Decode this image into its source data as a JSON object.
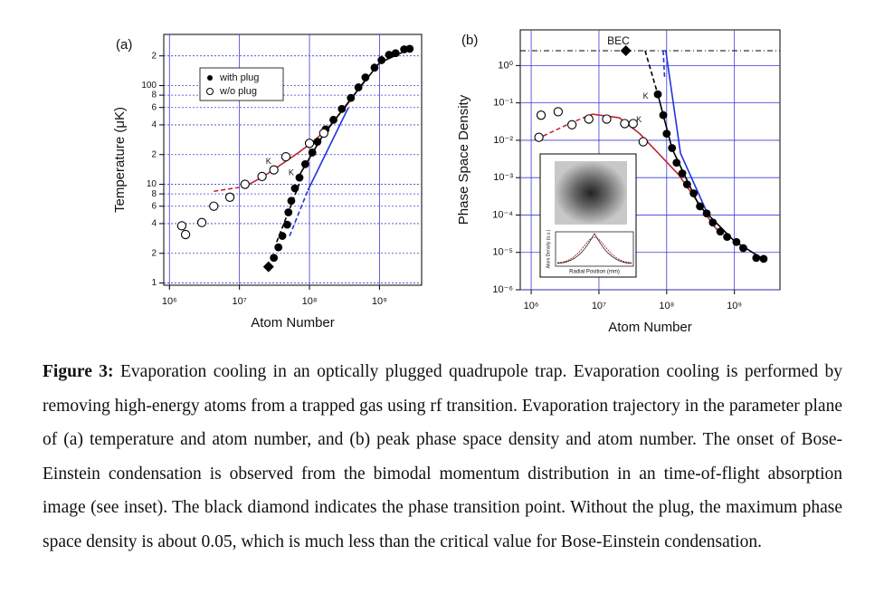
{
  "chart_data": [
    {
      "type": "scatter",
      "panel_label": "(a)",
      "xlabel": "Atom Number",
      "ylabel": "Temperature (μK)",
      "log_x": true,
      "log_y": true,
      "grid": true,
      "grid_color": "#3b3bd6",
      "legend": "upper left",
      "xlim": [
        830000,
        4000000000
      ],
      "ylim": [
        0.95,
        330
      ],
      "xticks": [
        {
          "value": 1000000,
          "label": "10⁶"
        },
        {
          "value": 10000000,
          "label": "10⁷"
        },
        {
          "value": 100000000,
          "label": "10⁸"
        },
        {
          "value": 1000000000,
          "label": "10⁹"
        }
      ],
      "yticks": [
        1,
        2,
        4,
        6,
        8,
        10,
        {
          "value": 20,
          "label": "2"
        },
        {
          "value": 40,
          "label": "4"
        },
        {
          "value": 60,
          "label": "6"
        },
        {
          "value": 80,
          "label": "8"
        },
        100,
        {
          "value": 200,
          "label": "2"
        }
      ],
      "series": [
        {
          "name": "with plug",
          "marker": "filled",
          "color": "#000000",
          "x": [
            31000000,
            36000000,
            41000000,
            48000000,
            50000000,
            55000000,
            62000000,
            72000000,
            87000000,
            110000000,
            130000000,
            170000000,
            220000000,
            290000000,
            390000000,
            500000000,
            630000000,
            850000000,
            1070000000,
            1370000000,
            1700000000,
            2250000000,
            2700000000
          ],
          "values": [
            1.8,
            2.3,
            3.0,
            3.9,
            5.2,
            6.8,
            9.1,
            11.7,
            16,
            21,
            27,
            36,
            45,
            58,
            75,
            96,
            121,
            152,
            181,
            205,
            213,
            233,
            236
          ]
        },
        {
          "name": "w/o plug",
          "marker": "open",
          "color": "#000000",
          "x": [
            1500000,
            1700000,
            2900000,
            4300000,
            7300000,
            12000000,
            21000000,
            31000000,
            46000000,
            100000000,
            160000000
          ],
          "values": [
            3.8,
            3.1,
            4.1,
            6.0,
            7.4,
            10,
            12,
            14,
            19,
            26,
            33
          ]
        },
        {
          "marker": "diamond",
          "color": "#000000",
          "x": [
            26000000
          ],
          "values": [
            1.46
          ]
        },
        {
          "line": "dashed",
          "color": "#c0282d",
          "x": [
            4300000,
            12000000
          ],
          "values": [
            8.5,
            9.5
          ]
        },
        {
          "line": "solid",
          "color": "#c0282d",
          "x": [
            12000000,
            22000000,
            40000000,
            70000000,
            120000000,
            200000000,
            350000000,
            600000000
          ],
          "values": [
            9.5,
            12,
            16,
            21,
            28,
            40,
            65,
            110
          ]
        },
        {
          "line": "dashed",
          "color": "#000000",
          "x": [
            34000000,
            75000000
          ],
          "values": [
            2.6,
            11
          ]
        },
        {
          "line": "solid",
          "color": "#000000",
          "x": [
            70000000,
            150000000,
            400000000,
            1000000000,
            2900000000
          ],
          "values": [
            12,
            30,
            75,
            170,
            240
          ]
        },
        {
          "line": "dashed",
          "color": "#2233dd",
          "x": [
            52000000,
            95000000
          ],
          "values": [
            3.0,
            8.7
          ]
        },
        {
          "line": "solid",
          "color": "#2233dd",
          "x": [
            95000000,
            360000000
          ],
          "values": [
            8.7,
            60
          ]
        }
      ],
      "annotations": [
        {
          "text": "K",
          "x": 26000000,
          "y": 17
        },
        {
          "text": "K",
          "x": 55000000,
          "y": 13
        }
      ]
    },
    {
      "type": "scatter",
      "panel_label": "(b)",
      "xlabel": "Atom Number",
      "ylabel": "Phase Space Density",
      "log_x": true,
      "log_y": true,
      "grid": true,
      "grid_color": "#3b3bd6",
      "xlim": [
        690000,
        4700000000
      ],
      "ylim": [
        1e-06,
        9
      ],
      "xticks": [
        {
          "value": 1000000,
          "label": "10⁶"
        },
        {
          "value": 10000000,
          "label": "10⁷"
        },
        {
          "value": 100000000,
          "label": "10⁸"
        },
        {
          "value": 1000000000,
          "label": "10⁹"
        }
      ],
      "yticks": [
        {
          "value": 1e-06,
          "label": "10⁻⁶"
        },
        {
          "value": 1e-05,
          "label": "10⁻⁵"
        },
        {
          "value": 0.0001,
          "label": "10⁻⁴"
        },
        {
          "value": 0.001,
          "label": "10⁻³"
        },
        {
          "value": 0.01,
          "label": "10⁻²"
        },
        {
          "value": 0.1,
          "label": "10⁻¹"
        },
        {
          "value": 1,
          "label": "10⁰"
        }
      ],
      "hline": {
        "value": 2.5,
        "label": "BEC"
      },
      "series": [
        {
          "marker": "filled",
          "color": "#000000",
          "x": [
            74000000,
            89000000,
            100000000,
            120000000,
            140000000,
            170000000,
            200000000,
            250000000,
            310000000,
            390000000,
            480000000,
            620000000,
            780000000,
            1070000000,
            1350000000,
            2100000000,
            2700000000
          ],
          "values": [
            0.17,
            0.047,
            0.015,
            0.0062,
            0.0025,
            0.0013,
            0.00066,
            0.00038,
            0.00017,
            0.00011,
            6.3e-05,
            3.6e-05,
            2.6e-05,
            1.9e-05,
            1.3e-05,
            7.1e-06,
            6.7e-06
          ]
        },
        {
          "marker": "open",
          "color": "#000000",
          "x": [
            1300000,
            1400000,
            2500000,
            4000000,
            7100000,
            13000000,
            24000000,
            32000000,
            45000000
          ],
          "values": [
            0.012,
            0.047,
            0.058,
            0.026,
            0.037,
            0.037,
            0.028,
            0.028,
            0.0091
          ]
        },
        {
          "marker": "diamond",
          "color": "#000000",
          "x": [
            25000000
          ],
          "values": [
            2.5
          ]
        },
        {
          "line": "dashed",
          "color": "#c0282d",
          "x": [
            1500000,
            4000000,
            8000000
          ],
          "values": [
            0.013,
            0.03,
            0.05
          ]
        },
        {
          "line": "solid",
          "color": "#c0282d",
          "x": [
            8000000,
            20000000,
            40000000,
            80000000,
            150000000,
            300000000,
            500000000,
            650000000
          ],
          "values": [
            0.05,
            0.04,
            0.015,
            0.004,
            0.0012,
            0.0002,
            5e-05,
            3e-05
          ]
        },
        {
          "line": "dashed",
          "color": "#000000",
          "x": [
            48000000,
            74000000
          ],
          "values": [
            2.5,
            0.17
          ]
        },
        {
          "line": "solid",
          "color": "#000000",
          "x": [
            74000000,
            120000000,
            300000000,
            1000000000,
            2700000000
          ],
          "values": [
            0.17,
            0.006,
            0.00018,
            2e-05,
            6.5e-06
          ]
        },
        {
          "line": "dashed",
          "color": "#2233dd",
          "x": [
            89000000,
            93000000
          ],
          "values": [
            2.5,
            0.5
          ]
        },
        {
          "line": "solid",
          "color": "#2233dd",
          "x": [
            97000000,
            160000000,
            400000000
          ],
          "values": [
            2.5,
            0.0045,
            0.00011
          ]
        }
      ],
      "annotations": [
        {
          "text": "K",
          "x": 49000000,
          "y": 0.15
        },
        {
          "text": "K",
          "x": 39000000,
          "y": 0.035
        }
      ],
      "inset": {
        "ylabel": "Atom Density (a.u.)",
        "xlabel": "Radial Position (mm)"
      }
    }
  ],
  "caption": {
    "label": "Figure 3:",
    "text": "Evaporation cooling in an optically plugged quadrupole trap. Evaporation cooling is performed by removing high-energy atoms from a trapped gas using rf transition. Evaporation trajectory in the parameter plane of (a) temperature and atom number, and (b) peak phase space density and atom number. The onset of Bose-Einstein condensation is observed from the bimodal momentum distribution in an time-of-flight absorption image (see inset). The black diamond indicates the phase transition point. Without the plug, the maximum phase space density is about 0.05, which is much less than the critical value for Bose-Einstein condensation."
  }
}
